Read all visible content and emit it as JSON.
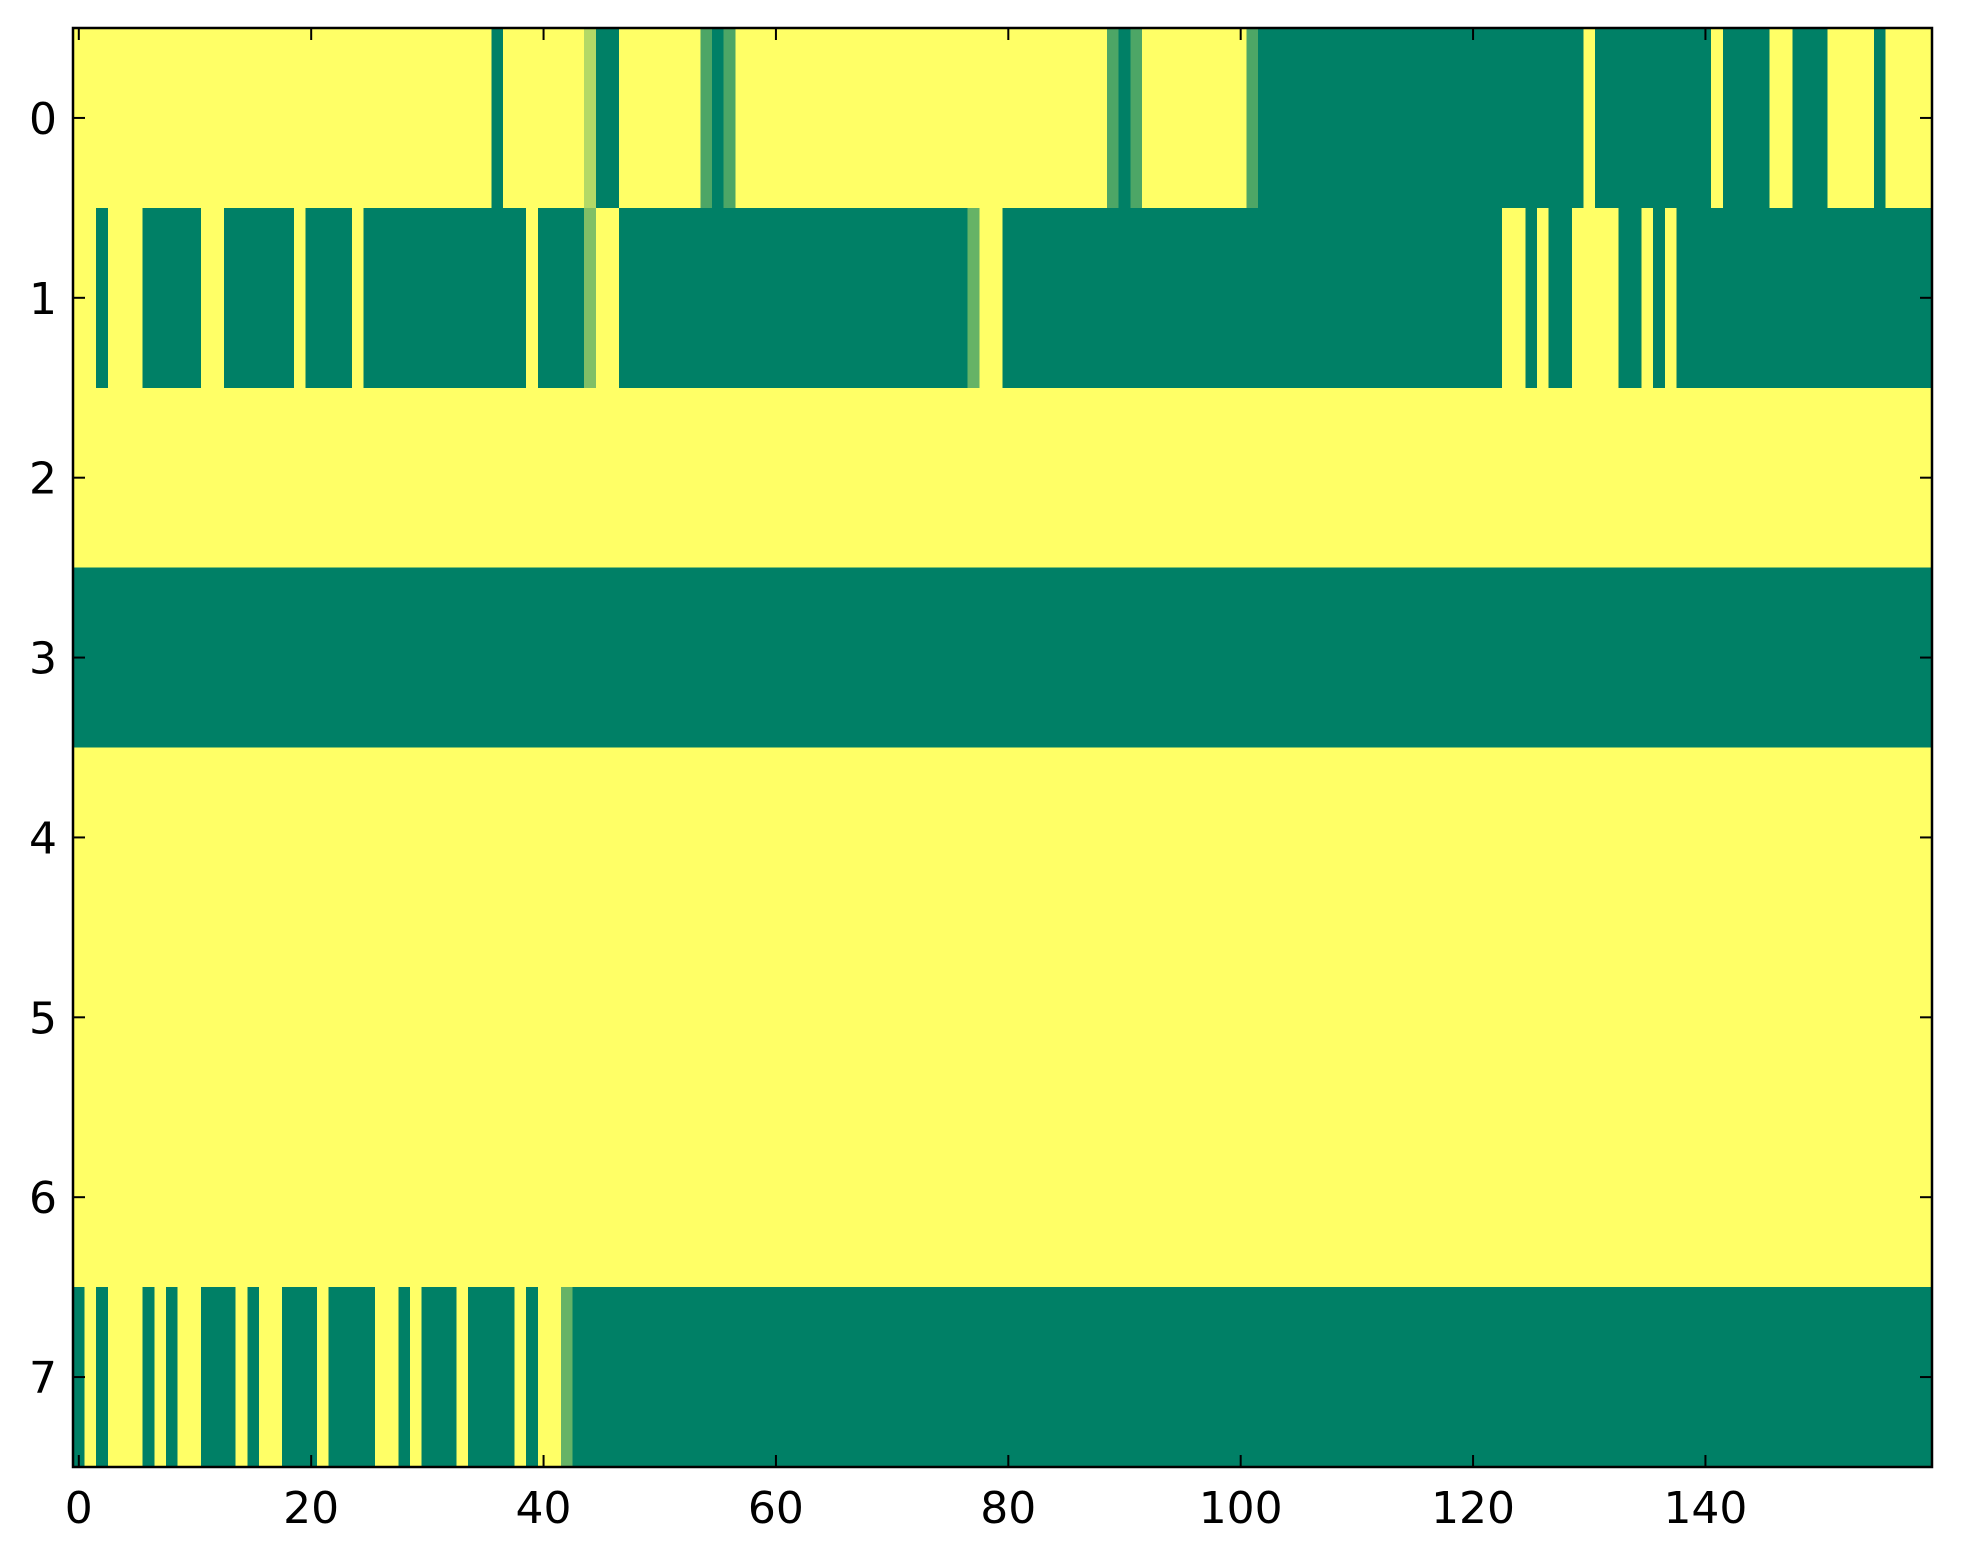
{
  "chart_data": {
    "type": "heatmap",
    "colormap": "summer",
    "clim": [
      0,
      1
    ],
    "xlim": [
      -0.5,
      159.5
    ],
    "ylim": [
      7.5,
      -0.5
    ],
    "xticks": [
      0,
      20,
      40,
      60,
      80,
      100,
      120,
      140
    ],
    "yticks": [
      0,
      1,
      2,
      3,
      4,
      5,
      6,
      7
    ],
    "z": [
      [
        1,
        1,
        1,
        1,
        1,
        1,
        1,
        1,
        1,
        1,
        1,
        1,
        1,
        1,
        1,
        1,
        1,
        1,
        1,
        1,
        1,
        1,
        1,
        1,
        1,
        1,
        1,
        1,
        1,
        1,
        1,
        1,
        1,
        1,
        1,
        1,
        0,
        1,
        1,
        1,
        1,
        1,
        1,
        1,
        0.7,
        0,
        0,
        1,
        1,
        1,
        1,
        1,
        1,
        1,
        0.3,
        0,
        0.3,
        1,
        1,
        1,
        1,
        1,
        1,
        1,
        1,
        1,
        1,
        1,
        1,
        1,
        1,
        1,
        1,
        1,
        1,
        1,
        1,
        1,
        1,
        1,
        1,
        1,
        1,
        1,
        1,
        1,
        1,
        1,
        1,
        0.3,
        0,
        0.3,
        1,
        1,
        1,
        1,
        1,
        1,
        1,
        1,
        1,
        0.3,
        0,
        0,
        0,
        0,
        0,
        0,
        0,
        0,
        0,
        0,
        0,
        0,
        0,
        0,
        0,
        0,
        0,
        0,
        0,
        0,
        0,
        0,
        0,
        0,
        0,
        0,
        0,
        0,
        1,
        0,
        0,
        0,
        0,
        0,
        0,
        0,
        0,
        0,
        0,
        1,
        0,
        0,
        0,
        0,
        1,
        1,
        0,
        0,
        0,
        1,
        1,
        1,
        1,
        0,
        1,
        1,
        1,
        1
      ],
      [
        1,
        1,
        0,
        1,
        1,
        1,
        0,
        0,
        0,
        0,
        0,
        1,
        1,
        0,
        0,
        0,
        0,
        0,
        0,
        1,
        0,
        0,
        0,
        0,
        1,
        0,
        0,
        0,
        0,
        0,
        0,
        0,
        0,
        0,
        0,
        0,
        0,
        0,
        0,
        1,
        0,
        0,
        0,
        0,
        0.5,
        1,
        1,
        0,
        0,
        0,
        0,
        0,
        0,
        0,
        0,
        0,
        0,
        0,
        0,
        0,
        0,
        0,
        0,
        0,
        0,
        0,
        0,
        0,
        0,
        0,
        0,
        0,
        0,
        0,
        0,
        0,
        0,
        0.4,
        1,
        1,
        0,
        0,
        0,
        0,
        0,
        0,
        0,
        0,
        0,
        0,
        0,
        0,
        0,
        0,
        0,
        0,
        0,
        0,
        0,
        0,
        0,
        0,
        0,
        0,
        0,
        0,
        0,
        0,
        0,
        0,
        0,
        0,
        0,
        0,
        0,
        0,
        0,
        0,
        0,
        0,
        0,
        0,
        0,
        1,
        1,
        0,
        1,
        0,
        0,
        1,
        1,
        1,
        1,
        0,
        0,
        1,
        0,
        1,
        0,
        0,
        0,
        0,
        0,
        0,
        0,
        0,
        0,
        0,
        0,
        0,
        0,
        0,
        0,
        0,
        0,
        0,
        0,
        0,
        0,
        0
      ],
      [
        1,
        1,
        1,
        1,
        1,
        1,
        1,
        1,
        1,
        1,
        1,
        1,
        1,
        1,
        1,
        1,
        1,
        1,
        1,
        1,
        1,
        1,
        1,
        1,
        1,
        1,
        1,
        1,
        1,
        1,
        1,
        1,
        1,
        1,
        1,
        1,
        1,
        1,
        1,
        1,
        1,
        1,
        1,
        1,
        1,
        1,
        1,
        1,
        1,
        1,
        1,
        1,
        1,
        1,
        1,
        1,
        1,
        1,
        1,
        1,
        1,
        1,
        1,
        1,
        1,
        1,
        1,
        1,
        1,
        1,
        1,
        1,
        1,
        1,
        1,
        1,
        1,
        1,
        1,
        1,
        1,
        1,
        1,
        1,
        1,
        1,
        1,
        1,
        1,
        1,
        1,
        1,
        1,
        1,
        1,
        1,
        1,
        1,
        1,
        1,
        1,
        1,
        1,
        1,
        1,
        1,
        1,
        1,
        1,
        1,
        1,
        1,
        1,
        1,
        1,
        1,
        1,
        1,
        1,
        1,
        1,
        1,
        1,
        1,
        1,
        1,
        1,
        1,
        1,
        1,
        1,
        1,
        1,
        1,
        1,
        1,
        1,
        1,
        1,
        1,
        1,
        1,
        1,
        1,
        1,
        1,
        1,
        1,
        1,
        1,
        1,
        1,
        1,
        1,
        1,
        1,
        1,
        1,
        1,
        1
      ],
      [
        0,
        0,
        0,
        0,
        0,
        0,
        0,
        0,
        0,
        0,
        0,
        0,
        0,
        0,
        0,
        0,
        0,
        0,
        0,
        0,
        0,
        0,
        0,
        0,
        0,
        0,
        0,
        0,
        0,
        0,
        0,
        0,
        0,
        0,
        0,
        0,
        0,
        0,
        0,
        0,
        0,
        0,
        0,
        0,
        0,
        0,
        0,
        0,
        0,
        0,
        0,
        0,
        0,
        0,
        0,
        0,
        0,
        0,
        0,
        0,
        0,
        0,
        0,
        0,
        0,
        0,
        0,
        0,
        0,
        0,
        0,
        0,
        0,
        0,
        0,
        0,
        0,
        0,
        0,
        0,
        0,
        0,
        0,
        0,
        0,
        0,
        0,
        0,
        0,
        0,
        0,
        0,
        0,
        0,
        0,
        0,
        0,
        0,
        0,
        0,
        0,
        0,
        0,
        0,
        0,
        0,
        0,
        0,
        0,
        0,
        0,
        0,
        0,
        0,
        0,
        0,
        0,
        0,
        0,
        0,
        0,
        0,
        0,
        0,
        0,
        0,
        0,
        0,
        0,
        0,
        0,
        0,
        0,
        0,
        0,
        0,
        0,
        0,
        0,
        0,
        0,
        0,
        0,
        0,
        0,
        0,
        0,
        0,
        0,
        0,
        0,
        0,
        0,
        0,
        0,
        0,
        0,
        0,
        0,
        0
      ],
      [
        1,
        1,
        1,
        1,
        1,
        1,
        1,
        1,
        1,
        1,
        1,
        1,
        1,
        1,
        1,
        1,
        1,
        1,
        1,
        1,
        1,
        1,
        1,
        1,
        1,
        1,
        1,
        1,
        1,
        1,
        1,
        1,
        1,
        1,
        1,
        1,
        1,
        1,
        1,
        1,
        1,
        1,
        1,
        1,
        1,
        1,
        1,
        1,
        1,
        1,
        1,
        1,
        1,
        1,
        1,
        1,
        1,
        1,
        1,
        1,
        1,
        1,
        1,
        1,
        1,
        1,
        1,
        1,
        1,
        1,
        1,
        1,
        1,
        1,
        1,
        1,
        1,
        1,
        1,
        1,
        1,
        1,
        1,
        1,
        1,
        1,
        1,
        1,
        1,
        1,
        1,
        1,
        1,
        1,
        1,
        1,
        1,
        1,
        1,
        1,
        1,
        1,
        1,
        1,
        1,
        1,
        1,
        1,
        1,
        1,
        1,
        1,
        1,
        1,
        1,
        1,
        1,
        1,
        1,
        1,
        1,
        1,
        1,
        1,
        1,
        1,
        1,
        1,
        1,
        1,
        1,
        1,
        1,
        1,
        1,
        1,
        1,
        1,
        1,
        1,
        1,
        1,
        1,
        1,
        1,
        1,
        1,
        1,
        1,
        1,
        1,
        1,
        1,
        1,
        1,
        1,
        1,
        1,
        1,
        1
      ],
      [
        1,
        1,
        1,
        1,
        1,
        1,
        1,
        1,
        1,
        1,
        1,
        1,
        1,
        1,
        1,
        1,
        1,
        1,
        1,
        1,
        1,
        1,
        1,
        1,
        1,
        1,
        1,
        1,
        1,
        1,
        1,
        1,
        1,
        1,
        1,
        1,
        1,
        1,
        1,
        1,
        1,
        1,
        1,
        1,
        1,
        1,
        1,
        1,
        1,
        1,
        1,
        1,
        1,
        1,
        1,
        1,
        1,
        1,
        1,
        1,
        1,
        1,
        1,
        1,
        1,
        1,
        1,
        1,
        1,
        1,
        1,
        1,
        1,
        1,
        1,
        1,
        1,
        1,
        1,
        1,
        1,
        1,
        1,
        1,
        1,
        1,
        1,
        1,
        1,
        1,
        1,
        1,
        1,
        1,
        1,
        1,
        1,
        1,
        1,
        1,
        1,
        1,
        1,
        1,
        1,
        1,
        1,
        1,
        1,
        1,
        1,
        1,
        1,
        1,
        1,
        1,
        1,
        1,
        1,
        1,
        1,
        1,
        1,
        1,
        1,
        1,
        1,
        1,
        1,
        1,
        1,
        1,
        1,
        1,
        1,
        1,
        1,
        1,
        1,
        1,
        1,
        1,
        1,
        1,
        1,
        1,
        1,
        1,
        1,
        1,
        1,
        1,
        1,
        1,
        1,
        1,
        1,
        1,
        1,
        1
      ],
      [
        1,
        1,
        1,
        1,
        1,
        1,
        1,
        1,
        1,
        1,
        1,
        1,
        1,
        1,
        1,
        1,
        1,
        1,
        1,
        1,
        1,
        1,
        1,
        1,
        1,
        1,
        1,
        1,
        1,
        1,
        1,
        1,
        1,
        1,
        1,
        1,
        1,
        1,
        1,
        1,
        1,
        1,
        1,
        1,
        1,
        1,
        1,
        1,
        1,
        1,
        1,
        1,
        1,
        1,
        1,
        1,
        1,
        1,
        1,
        1,
        1,
        1,
        1,
        1,
        1,
        1,
        1,
        1,
        1,
        1,
        1,
        1,
        1,
        1,
        1,
        1,
        1,
        1,
        1,
        1,
        1,
        1,
        1,
        1,
        1,
        1,
        1,
        1,
        1,
        1,
        1,
        1,
        1,
        1,
        1,
        1,
        1,
        1,
        1,
        1,
        1,
        1,
        1,
        1,
        1,
        1,
        1,
        1,
        1,
        1,
        1,
        1,
        1,
        1,
        1,
        1,
        1,
        1,
        1,
        1,
        1,
        1,
        1,
        1,
        1,
        1,
        1,
        1,
        1,
        1,
        1,
        1,
        1,
        1,
        1,
        1,
        1,
        1,
        1,
        1,
        1,
        1,
        1,
        1,
        1,
        1,
        1,
        1,
        1,
        1,
        1,
        1,
        1,
        1,
        1,
        1,
        1,
        1,
        1,
        1
      ],
      [
        0,
        1,
        0,
        1,
        1,
        1,
        0,
        1,
        0,
        1,
        1,
        0,
        0,
        0,
        1,
        0,
        1,
        1,
        0,
        0,
        0,
        1,
        0,
        0,
        0,
        0,
        1,
        1,
        0,
        1,
        0,
        0,
        0,
        1,
        0,
        0,
        0,
        0,
        1,
        0,
        1,
        1,
        0.4,
        0,
        0,
        0,
        0,
        0,
        0,
        0,
        0,
        0,
        0,
        0,
        0,
        0,
        0,
        0,
        0,
        0,
        0,
        0,
        0,
        0,
        0,
        0,
        0,
        0,
        0,
        0,
        0,
        0,
        0,
        0,
        0,
        0,
        0,
        0,
        0,
        0,
        0,
        0,
        0,
        0,
        0,
        0,
        0,
        0,
        0,
        0,
        0,
        0,
        0,
        0,
        0,
        0,
        0,
        0,
        0,
        0,
        0,
        0,
        0,
        0,
        0,
        0,
        0,
        0,
        0,
        0,
        0,
        0,
        0,
        0,
        0,
        0,
        0,
        0,
        0,
        0,
        0,
        0,
        0,
        0,
        0,
        0,
        0,
        0,
        0,
        0,
        0,
        0,
        0,
        0,
        0,
        0,
        0,
        0,
        0,
        0,
        0,
        0,
        0,
        0,
        0,
        0,
        0,
        0,
        0,
        0,
        0,
        0,
        0,
        0,
        0,
        0,
        0,
        0,
        0,
        0
      ]
    ]
  }
}
